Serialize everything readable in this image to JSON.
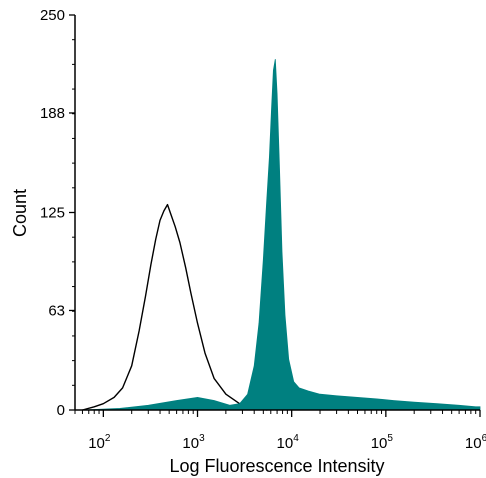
{
  "chart_data": {
    "type": "area",
    "xlabel": "Log Fluorescence Intensity",
    "ylabel": "Count",
    "x_scale": "log",
    "xlim": [
      50,
      1000000
    ],
    "ylim": [
      0,
      250
    ],
    "y_ticks": [
      "0",
      "63",
      "125",
      "188",
      "250"
    ],
    "x_ticks": [
      {
        "base": "10",
        "exp": "2",
        "value": 100
      },
      {
        "base": "10",
        "exp": "3",
        "value": 1000
      },
      {
        "base": "10",
        "exp": "4",
        "value": 10000
      },
      {
        "base": "10",
        "exp": "5",
        "value": 100000
      },
      {
        "base": "10",
        "exp": "6",
        "value": 1000000
      }
    ],
    "grid": false,
    "series": [
      {
        "style": "outline",
        "color": "#000000",
        "points": [
          [
            60,
            0
          ],
          [
            80,
            2
          ],
          [
            100,
            4
          ],
          [
            130,
            8
          ],
          [
            160,
            14
          ],
          [
            200,
            28
          ],
          [
            240,
            50
          ],
          [
            280,
            72
          ],
          [
            320,
            92
          ],
          [
            360,
            108
          ],
          [
            400,
            120
          ],
          [
            440,
            126
          ],
          [
            480,
            130
          ],
          [
            520,
            124
          ],
          [
            580,
            116
          ],
          [
            650,
            106
          ],
          [
            750,
            90
          ],
          [
            850,
            74
          ],
          [
            1000,
            55
          ],
          [
            1200,
            36
          ],
          [
            1500,
            20
          ],
          [
            2000,
            10
          ],
          [
            2800,
            4
          ],
          [
            4000,
            1.5
          ],
          [
            5500,
            0
          ]
        ]
      },
      {
        "style": "filled",
        "color": "#008080",
        "points": [
          [
            60,
            0
          ],
          [
            150,
            1
          ],
          [
            300,
            3
          ],
          [
            600,
            6
          ],
          [
            1000,
            8
          ],
          [
            1500,
            6
          ],
          [
            2200,
            3
          ],
          [
            2800,
            4
          ],
          [
            3400,
            10
          ],
          [
            4000,
            28
          ],
          [
            4500,
            55
          ],
          [
            5000,
            95
          ],
          [
            5400,
            130
          ],
          [
            5800,
            160
          ],
          [
            6100,
            190
          ],
          [
            6400,
            215
          ],
          [
            6700,
            222
          ],
          [
            7000,
            200
          ],
          [
            7400,
            155
          ],
          [
            7900,
            100
          ],
          [
            8500,
            60
          ],
          [
            9300,
            32
          ],
          [
            10500,
            18
          ],
          [
            12000,
            14
          ],
          [
            15000,
            12
          ],
          [
            20000,
            10
          ],
          [
            30000,
            9
          ],
          [
            50000,
            8
          ],
          [
            80000,
            7
          ],
          [
            120000,
            6
          ],
          [
            200000,
            5
          ],
          [
            350000,
            4
          ],
          [
            600000,
            3
          ],
          [
            900000,
            2
          ],
          [
            1000000,
            2
          ]
        ]
      }
    ]
  }
}
